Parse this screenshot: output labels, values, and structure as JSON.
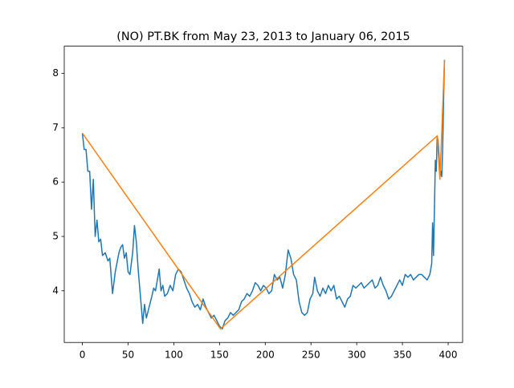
{
  "chart_data": {
    "type": "line",
    "title": "(NO) PT.BK from May 23, 2013 to January 06, 2015",
    "xlim": [
      -19.8,
      415.8
    ],
    "ylim": [
      3.05,
      8.5
    ],
    "xticks": [
      0,
      50,
      100,
      150,
      200,
      250,
      300,
      350,
      400
    ],
    "yticks": [
      4,
      5,
      6,
      7,
      8
    ],
    "series": [
      {
        "color": "#1f77b4",
        "x": [
          0,
          2,
          4,
          6,
          8,
          10,
          12,
          14,
          16,
          18,
          20,
          22,
          25,
          28,
          30,
          33,
          36,
          40,
          42,
          44,
          46,
          48,
          50,
          52,
          55,
          57,
          59,
          61,
          63,
          65,
          66,
          68,
          70,
          73,
          76,
          78,
          80,
          82,
          84,
          86,
          88,
          90,
          93,
          96,
          99,
          102,
          105,
          108,
          111,
          114,
          117,
          120,
          123,
          126,
          129,
          132,
          135,
          138,
          141,
          144,
          147,
          150,
          153,
          156,
          159,
          162,
          165,
          168,
          171,
          174,
          177,
          180,
          183,
          186,
          189,
          192,
          195,
          198,
          201,
          204,
          207,
          210,
          213,
          216,
          219,
          222,
          225,
          228,
          231,
          234,
          237,
          240,
          243,
          246,
          249,
          252,
          254,
          257,
          260,
          263,
          266,
          269,
          272,
          275,
          278,
          281,
          284,
          287,
          290,
          293,
          296,
          299,
          302,
          305,
          308,
          311,
          314,
          317,
          320,
          323,
          326,
          329,
          332,
          335,
          338,
          341,
          344,
          347,
          350,
          353,
          356,
          359,
          362,
          365,
          368,
          371,
          374,
          377,
          380,
          382,
          383,
          384,
          385,
          386,
          387,
          388,
          389,
          390,
          391,
          392,
          393,
          394,
          395,
          396
        ],
        "values": [
          6.9,
          6.6,
          6.6,
          6.2,
          6.2,
          5.5,
          6.05,
          5.0,
          5.3,
          4.9,
          4.95,
          4.65,
          4.7,
          4.55,
          4.6,
          3.95,
          4.35,
          4.7,
          4.8,
          4.85,
          4.6,
          4.7,
          4.35,
          4.3,
          4.7,
          5.2,
          4.9,
          4.4,
          4.0,
          3.6,
          3.4,
          3.75,
          3.5,
          3.7,
          3.9,
          4.05,
          4.0,
          4.2,
          4.4,
          4.0,
          4.1,
          3.9,
          3.95,
          4.1,
          4.0,
          4.3,
          4.4,
          4.35,
          4.2,
          4.05,
          3.95,
          3.8,
          3.7,
          3.75,
          3.65,
          3.85,
          3.7,
          3.6,
          3.5,
          3.55,
          3.45,
          3.35,
          3.3,
          3.45,
          3.5,
          3.6,
          3.55,
          3.6,
          3.65,
          3.8,
          3.85,
          3.95,
          3.9,
          4.0,
          4.15,
          4.1,
          4.0,
          4.1,
          4.05,
          3.95,
          4.0,
          4.3,
          4.2,
          4.25,
          4.05,
          4.3,
          4.75,
          4.6,
          4.3,
          4.2,
          3.8,
          3.6,
          3.55,
          3.6,
          3.85,
          3.95,
          4.25,
          4.0,
          3.9,
          4.05,
          3.95,
          4.1,
          4.0,
          4.1,
          3.85,
          3.9,
          3.8,
          3.7,
          3.85,
          3.9,
          4.1,
          4.05,
          4.1,
          4.15,
          4.05,
          4.1,
          4.15,
          4.2,
          4.05,
          4.1,
          4.25,
          4.1,
          4.0,
          3.85,
          3.9,
          4.0,
          4.1,
          4.2,
          4.1,
          4.3,
          4.25,
          4.3,
          4.2,
          4.25,
          4.3,
          4.3,
          4.25,
          4.2,
          4.3,
          4.5,
          5.25,
          4.65,
          5.5,
          6.4,
          6.2,
          6.85,
          6.75,
          6.5,
          6.1,
          6.2,
          6.1,
          6.6,
          7.5,
          8.25
        ]
      },
      {
        "color": "#ff7f0e",
        "x": [
          0,
          151,
          388,
          391,
          396
        ],
        "values": [
          6.9,
          3.3,
          6.85,
          6.05,
          8.25
        ]
      }
    ]
  }
}
